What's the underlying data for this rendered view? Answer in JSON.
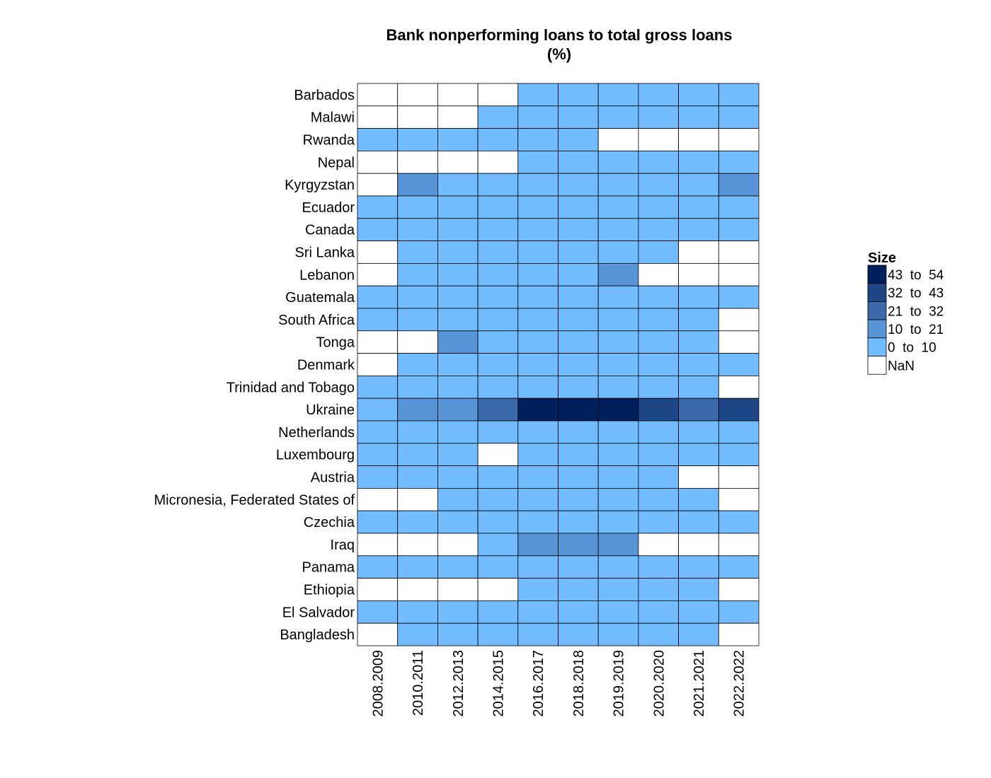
{
  "chart_data": {
    "type": "heatmap",
    "title": "Bank nonperforming loans to total gross loans",
    "subtitle": "(%)",
    "x": [
      "2008.2009",
      "2010.2011",
      "2012.2013",
      "2014.2015",
      "2016.2017",
      "2018.2018",
      "2019.2019",
      "2020.2020",
      "2021.2021",
      "2022.2022"
    ],
    "y": [
      "Barbados",
      "Malawi",
      "Rwanda",
      "Nepal",
      "Kyrgyzstan",
      "Ecuador",
      "Canada",
      "Sri Lanka",
      "Lebanon",
      "Guatemala",
      "South Africa",
      "Tonga",
      "Denmark",
      "Trinidad and Tobago",
      "Ukraine",
      "Netherlands",
      "Luxembourg",
      "Austria",
      "Micronesia, Federated States of",
      "Czechia",
      "Iraq",
      "Panama",
      "Ethiopia",
      "El Salvador",
      "Bangladesh"
    ],
    "bins": [
      {
        "label": "43  to  54",
        "color": "#00205c"
      },
      {
        "label": "32  to  43",
        "color": "#1f4788"
      },
      {
        "label": "21  to  32",
        "color": "#3a6aaa"
      },
      {
        "label": "10  to  21",
        "color": "#5895d6"
      },
      {
        "label": "0  to  10",
        "color": "#73bcff"
      },
      {
        "label": "NaN",
        "color": "#ffffff"
      }
    ],
    "values": [
      [
        -1,
        -1,
        -1,
        -1,
        0,
        0,
        0,
        0,
        0,
        0
      ],
      [
        -1,
        -1,
        -1,
        0,
        0,
        0,
        0,
        0,
        0,
        0
      ],
      [
        0,
        0,
        0,
        0,
        0,
        0,
        -1,
        -1,
        -1,
        -1
      ],
      [
        -1,
        -1,
        -1,
        -1,
        0,
        0,
        0,
        0,
        0,
        0
      ],
      [
        -1,
        1,
        0,
        0,
        0,
        0,
        0,
        0,
        0,
        1
      ],
      [
        0,
        0,
        0,
        0,
        0,
        0,
        0,
        0,
        0,
        0
      ],
      [
        0,
        0,
        0,
        0,
        0,
        0,
        0,
        0,
        0,
        0
      ],
      [
        -1,
        0,
        0,
        0,
        0,
        0,
        0,
        0,
        -1,
        -1
      ],
      [
        -1,
        0,
        0,
        0,
        0,
        0,
        1,
        -1,
        -1,
        -1
      ],
      [
        0,
        0,
        0,
        0,
        0,
        0,
        0,
        0,
        0,
        0
      ],
      [
        0,
        0,
        0,
        0,
        0,
        0,
        0,
        0,
        0,
        -1
      ],
      [
        -1,
        -1,
        1,
        0,
        0,
        0,
        0,
        0,
        0,
        -1
      ],
      [
        -1,
        0,
        0,
        0,
        0,
        0,
        0,
        0,
        0,
        0
      ],
      [
        0,
        0,
        0,
        0,
        0,
        0,
        0,
        0,
        0,
        -1
      ],
      [
        0,
        1,
        1,
        2,
        4,
        4,
        4,
        3,
        2,
        3
      ],
      [
        0,
        0,
        0,
        0,
        0,
        0,
        0,
        0,
        0,
        0
      ],
      [
        0,
        0,
        0,
        -1,
        0,
        0,
        0,
        0,
        0,
        0
      ],
      [
        0,
        0,
        0,
        0,
        0,
        0,
        0,
        0,
        -1,
        -1
      ],
      [
        -1,
        -1,
        0,
        0,
        0,
        0,
        0,
        0,
        0,
        -1
      ],
      [
        0,
        0,
        0,
        0,
        0,
        0,
        0,
        0,
        0,
        0
      ],
      [
        -1,
        -1,
        -1,
        0,
        1,
        1,
        1,
        -1,
        -1,
        -1
      ],
      [
        0,
        0,
        0,
        0,
        0,
        0,
        0,
        0,
        0,
        0
      ],
      [
        -1,
        -1,
        -1,
        -1,
        0,
        0,
        0,
        0,
        0,
        -1
      ],
      [
        0,
        0,
        0,
        0,
        0,
        0,
        0,
        0,
        0,
        0
      ],
      [
        -1,
        0,
        0,
        0,
        0,
        0,
        0,
        0,
        0,
        -1
      ]
    ],
    "value_encoding": "bin index: 0 = 0 to 10, 1 = 10 to 21, 2 = 21 to 32, 3 = 32 to 43, 4 = 43 to 54, -1 = NaN",
    "legend_title": "Size",
    "legend_position": "right"
  }
}
